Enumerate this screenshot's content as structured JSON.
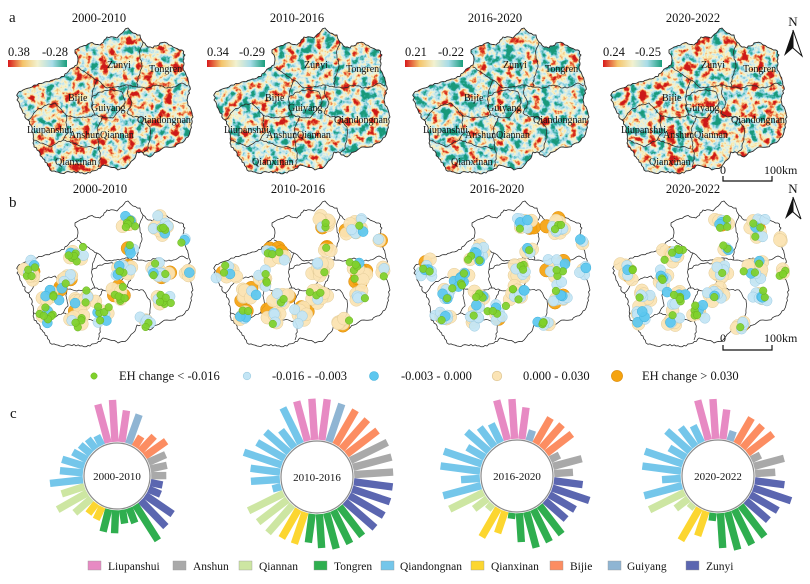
{
  "panel_a": {
    "label": "a",
    "maps": [
      {
        "title": "2000-2010",
        "colorbar_max": "0.38",
        "colorbar_min": "-0.28"
      },
      {
        "title": "2010-2016",
        "colorbar_max": "0.34",
        "colorbar_min": "-0.29"
      },
      {
        "title": "2016-2020",
        "colorbar_max": "0.21",
        "colorbar_min": "-0.22"
      },
      {
        "title": "2020-2022",
        "colorbar_max": "0.24",
        "colorbar_min": "-0.25"
      }
    ],
    "colorbar_colors": [
      "#d7191c",
      "#f4c46a",
      "#f2f1cf",
      "#a8dce8",
      "#1a9e7c"
    ]
  },
  "panel_b": {
    "label": "b",
    "maps": [
      {
        "title": "2000-2010"
      },
      {
        "title": "2010-2016"
      },
      {
        "title": "2016-2020"
      },
      {
        "title": "2020-2022"
      }
    ],
    "legend": [
      {
        "label": "EH change < -0.016",
        "color": "#7fd12b"
      },
      {
        "label": "-0.016 - -0.003",
        "color": "#c3e5f5"
      },
      {
        "label": "-0.003 - 0.000",
        "color": "#5cc7ef"
      },
      {
        "label": "0.000 - 0.030",
        "color": "#fbe4b5"
      },
      {
        "label": "EH change > 0.030",
        "color": "#f5a30f"
      }
    ]
  },
  "map_labels": [
    "Zunyi",
    "Tongren",
    "Bijie",
    "Guiyang",
    "Qiandongnan",
    "Liupanshui",
    "Anshun",
    "Qiannan",
    "Qianxinan"
  ],
  "north_arrow": {
    "label": "N"
  },
  "scale_bar": {
    "start": "0",
    "end": "100",
    "unit": "km"
  },
  "panel_c": {
    "label": "c",
    "regions": [
      {
        "name": "Liupanshui",
        "color": "#e78ac3"
      },
      {
        "name": "Anshun",
        "color": "#a9a9a9"
      },
      {
        "name": "Qiannan",
        "color": "#cde6a2"
      },
      {
        "name": "Tongren",
        "color": "#2fae4f"
      },
      {
        "name": "Qiandongnan",
        "color": "#74c6ea"
      },
      {
        "name": "Qianxinan",
        "color": "#fcd630"
      },
      {
        "name": "Bijie",
        "color": "#fc8d62"
      },
      {
        "name": "Guiyang",
        "color": "#8fb5d3"
      },
      {
        "name": "Zunyi",
        "color": "#5b66b0"
      }
    ]
  },
  "chart_data": {
    "type": "bar",
    "layout": "radial",
    "legend_placement": "bottom",
    "legend": [
      "Liupanshui",
      "Anshun",
      "Qiannan",
      "Tongren",
      "Qiandongnan",
      "Qianxinan",
      "Bijie",
      "Guiyang",
      "Zunyi"
    ],
    "clockwise_order": [
      "Liupanshui",
      "Guiyang",
      "Bijie",
      "Anshun",
      "Zunyi",
      "Tongren",
      "Qianxinan",
      "Qiannan",
      "Qiandongnan"
    ],
    "charts": [
      {
        "title": "2000-2010",
        "series": [
          {
            "name": "Liupanshui",
            "values": [
              0.95,
              1.0,
              0.76
            ]
          },
          {
            "name": "Guiyang",
            "values": [
              0.74
            ]
          },
          {
            "name": "Bijie",
            "values": [
              0.29,
              0.48,
              0.62
            ]
          },
          {
            "name": "Anshun",
            "values": [
              0.45,
              0.4,
              0.36
            ]
          },
          {
            "name": "Zunyi",
            "values": [
              0.29,
              0.31,
              0.79,
              0.86
            ]
          },
          {
            "name": "Tongren",
            "values": [
              1.0,
              0.38,
              0.33,
              0.55,
              0.55
            ]
          },
          {
            "name": "Qianxinan",
            "values": [
              0.33,
              0.31
            ]
          },
          {
            "name": "Qiannan",
            "values": [
              0.52,
              0.81,
              0.57
            ]
          },
          {
            "name": "Qiandongnan",
            "values": [
              0.79,
              0.55,
              0.55,
              0.38,
              0.33,
              0.31,
              0.26
            ]
          }
        ]
      },
      {
        "title": "2010-2016",
        "series": [
          {
            "name": "Liupanshui",
            "values": [
              0.98,
              0.98,
              0.98
            ]
          },
          {
            "name": "Guiyang",
            "values": [
              0.95
            ]
          },
          {
            "name": "Bijie",
            "values": [
              0.95,
              0.93,
              0.93
            ]
          },
          {
            "name": "Anshun",
            "values": [
              0.98,
              0.95,
              0.93
            ]
          },
          {
            "name": "Zunyi",
            "values": [
              0.93,
              0.95,
              0.95,
              0.95
            ]
          },
          {
            "name": "Tongren",
            "values": [
              0.88,
              0.88,
              0.88,
              0.81,
              0.69
            ]
          },
          {
            "name": "Qianxinan",
            "values": [
              0.79,
              0.79
            ]
          },
          {
            "name": "Qiannan",
            "values": [
              0.88,
              0.88,
              0.93
            ]
          },
          {
            "name": "Qiandongnan",
            "values": [
              0.21,
              0.69,
              0.71,
              0.95,
              0.76,
              0.74,
              0.52,
              0.95
            ]
          }
        ]
      },
      {
        "title": "2016-2020",
        "series": [
          {
            "name": "Liupanshui",
            "values": [
              0.98,
              0.95,
              0.76
            ]
          },
          {
            "name": "Guiyang",
            "values": [
              0.26
            ]
          },
          {
            "name": "Bijie",
            "values": [
              0.71,
              0.74,
              0.76
            ]
          },
          {
            "name": "Anshun",
            "values": [
              0.24,
              0.71,
              0.45
            ]
          },
          {
            "name": "Zunyi",
            "values": [
              0.69,
              0.93,
              0.71,
              0.67
            ]
          },
          {
            "name": "Tongren",
            "values": [
              0.86,
              0.86,
              0.88,
              0.69,
              0.14
            ]
          },
          {
            "name": "Qianxinan",
            "values": [
              0.55,
              0.79
            ]
          },
          {
            "name": "Qiannan",
            "values": [
              0.17,
              0.4,
              0.9
            ]
          },
          {
            "name": "Qiandongnan",
            "values": [
              0.93,
              0.45,
              0.95,
              0.95,
              0.48,
              0.71,
              0.57,
              0.5
            ]
          }
        ]
      },
      {
        "title": "2020-2022",
        "series": [
          {
            "name": "Liupanshui",
            "values": [
              0.98,
              0.95,
              0.71
            ]
          },
          {
            "name": "Guiyang",
            "values": [
              0.24
            ]
          },
          {
            "name": "Bijie",
            "values": [
              0.71,
              0.71,
              0.76
            ]
          },
          {
            "name": "Anshun",
            "values": [
              0.24,
              0.74,
              0.48
            ]
          },
          {
            "name": "Zunyi",
            "values": [
              0.71,
              0.95,
              0.76,
              0.71
            ]
          },
          {
            "name": "Tongren",
            "values": [
              0.93,
              0.93,
              0.93,
              0.83,
              0.19
            ]
          },
          {
            "name": "Qianxinan",
            "values": [
              0.62,
              0.88
            ]
          },
          {
            "name": "Qiannan",
            "values": [
              0.14,
              0.38,
              0.93
            ]
          },
          {
            "name": "Qiandongnan",
            "values": [
              0.93,
              0.45,
              0.93,
              0.95,
              0.45,
              0.74,
              0.57,
              0.45
            ]
          }
        ]
      }
    ]
  }
}
